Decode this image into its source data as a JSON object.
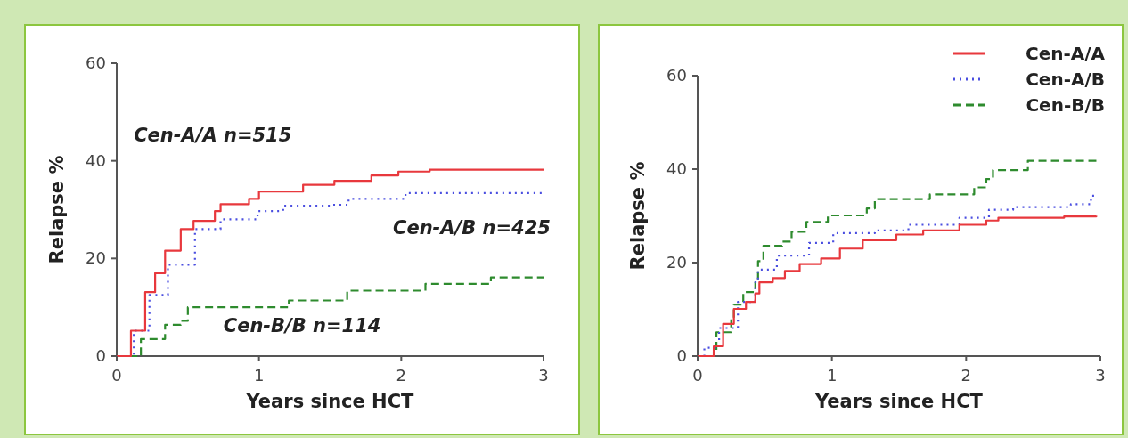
{
  "chart_data": [
    {
      "type": "step",
      "xlabel": "Years since HCT",
      "ylabel": "Relapse %",
      "xlim": [
        0,
        3
      ],
      "ylim": [
        0,
        60
      ],
      "xticks": [
        0,
        1,
        2,
        3
      ],
      "yticks": [
        0,
        20,
        40,
        60
      ],
      "grid": false,
      "legend": false,
      "series": [
        {
          "name": "Cen-A/A n=515",
          "color": "#e8383d",
          "line_style": "solid",
          "x": [
            0,
            0.1,
            0.2,
            0.27,
            0.34,
            0.45,
            0.54,
            0.69,
            0.73,
            0.93,
            1.0,
            1.31,
            1.53,
            1.79,
            1.98,
            2.2,
            3.0
          ],
          "values": [
            0,
            5.2,
            13.1,
            17,
            21.6,
            26,
            27.7,
            29.7,
            31.1,
            32.2,
            33.7,
            35.1,
            35.9,
            37,
            37.8,
            38.2,
            38.2
          ]
        },
        {
          "name": "Cen-A/B n=425",
          "color": "#4a4ee0",
          "line_style": "dotted",
          "x": [
            0,
            0.12,
            0.23,
            0.36,
            0.55,
            0.73,
            0.99,
            1.17,
            1.5,
            1.63,
            2.03,
            3.0
          ],
          "values": [
            0,
            5.2,
            12.5,
            18.7,
            26,
            28,
            29.7,
            30.8,
            31,
            32.2,
            33.4,
            33.4
          ]
        },
        {
          "name": "Cen-B/B n=114",
          "color": "#2e8b2e",
          "line_style": "dashed",
          "x": [
            0,
            0.17,
            0.34,
            0.45,
            0.5,
            1.21,
            1.62,
            2.17,
            2.63,
            3.0
          ],
          "values": [
            0,
            3.5,
            6.4,
            7.2,
            10,
            11.4,
            13.4,
            14.8,
            16.1,
            16.1
          ]
        }
      ]
    },
    {
      "type": "step",
      "xlabel": "Years since HCT",
      "ylabel": "Relapse %",
      "xlim": [
        0,
        3
      ],
      "ylim": [
        0,
        60
      ],
      "xticks": [
        0,
        1,
        2,
        3
      ],
      "yticks": [
        0,
        20,
        40,
        60
      ],
      "grid": false,
      "legend": "top right",
      "series": [
        {
          "name": "Cen-A/A",
          "color": "#e8383d",
          "line_style": "solid",
          "x": [
            0,
            0.12,
            0.19,
            0.27,
            0.36,
            0.43,
            0.46,
            0.56,
            0.65,
            0.76,
            0.92,
            1.06,
            1.23,
            1.48,
            1.68,
            1.95,
            2.15,
            2.24,
            2.73,
            2.97
          ],
          "values": [
            0,
            2.1,
            6.9,
            10.1,
            11.6,
            13.4,
            15.8,
            16.7,
            18.2,
            19.7,
            20.9,
            23,
            24.8,
            26,
            26.9,
            28.1,
            29,
            29.6,
            29.9,
            30
          ]
        },
        {
          "name": "Cen-A/B",
          "color": "#4a4ee0",
          "line_style": "dotted",
          "x": [
            0,
            0.05,
            0.16,
            0.3,
            0.43,
            0.45,
            0.59,
            0.83,
            1.01,
            1.32,
            1.57,
            1.95,
            2.17,
            2.35,
            2.78,
            2.93,
            2.97
          ],
          "values": [
            0,
            1.8,
            6,
            11.6,
            15.8,
            18.5,
            21.5,
            24.2,
            26.3,
            26.9,
            28.1,
            29.6,
            31.3,
            31.9,
            32.5,
            34.3,
            34.3
          ]
        },
        {
          "name": "Cen-B/B",
          "color": "#2e8b2e",
          "line_style": "dashed",
          "x": [
            0,
            0.12,
            0.14,
            0.25,
            0.27,
            0.34,
            0.43,
            0.45,
            0.49,
            0.63,
            0.7,
            0.81,
            0.97,
            1.26,
            1.32,
            1.73,
            2.06,
            2.15,
            2.2,
            2.46,
            2.97
          ],
          "values": [
            0,
            1.2,
            5.1,
            8.1,
            11,
            13.7,
            15.8,
            20.3,
            23.6,
            24.5,
            26.6,
            28.7,
            30.1,
            31.6,
            33.6,
            34.6,
            36.1,
            37.9,
            39.8,
            41.8,
            41.8
          ]
        }
      ]
    }
  ]
}
